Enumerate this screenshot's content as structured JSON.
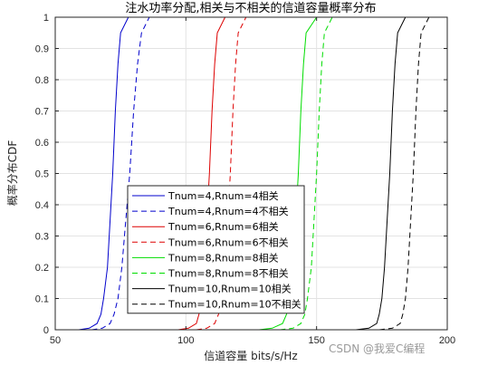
{
  "chart_data": {
    "type": "line",
    "title": "注水功率分配,相关与不相关的信道容量概率分布",
    "xlabel": "信道容量 bits/s/Hz",
    "ylabel": "概率分布CDF",
    "xlim": [
      50,
      200
    ],
    "ylim": [
      0,
      1
    ],
    "xticks": [
      "50",
      "100",
      "150",
      "200"
    ],
    "yticks": [
      "0",
      "0.1",
      "0.2",
      "0.3",
      "0.4",
      "0.5",
      "0.6",
      "0.7",
      "0.8",
      "0.9",
      "1"
    ],
    "grid": true,
    "legend_position": "center-left",
    "series": [
      {
        "name": "Tnum=4,Rnum=4相关",
        "color": "#0000cc",
        "dash": "solid",
        "x": [
          59,
          63,
          66,
          67.5,
          68.5,
          70,
          71,
          72,
          73,
          74,
          75,
          78
        ],
        "y": [
          0,
          0.005,
          0.02,
          0.05,
          0.1,
          0.2,
          0.35,
          0.5,
          0.7,
          0.85,
          0.95,
          1
        ]
      },
      {
        "name": "Tnum=4,Rnum=4不相关",
        "color": "#0000cc",
        "dash": "dashed",
        "x": [
          64,
          68,
          71,
          72.5,
          74,
          75.5,
          77,
          78.5,
          80,
          81.5,
          83,
          86
        ],
        "y": [
          0,
          0.005,
          0.02,
          0.05,
          0.1,
          0.2,
          0.35,
          0.5,
          0.7,
          0.85,
          0.95,
          1
        ]
      },
      {
        "name": "Tnum=6,Rnum=6相关",
        "color": "#dd0000",
        "dash": "solid",
        "x": [
          97,
          101,
          104,
          105,
          106,
          107,
          108,
          109,
          110,
          111,
          112,
          115
        ],
        "y": [
          0,
          0.005,
          0.02,
          0.05,
          0.1,
          0.2,
          0.35,
          0.5,
          0.7,
          0.85,
          0.95,
          1
        ]
      },
      {
        "name": "Tnum=6,Rnum=6不相关",
        "color": "#dd0000",
        "dash": "dashed",
        "x": [
          104,
          108,
          111,
          112.5,
          113.5,
          115,
          116,
          117,
          118,
          119,
          120,
          123
        ],
        "y": [
          0,
          0.005,
          0.02,
          0.05,
          0.1,
          0.2,
          0.35,
          0.5,
          0.7,
          0.85,
          0.95,
          1
        ]
      },
      {
        "name": "Tnum=8,Rnum=8相关",
        "color": "#00dd00",
        "dash": "solid",
        "x": [
          128,
          133,
          137,
          138.5,
          139.5,
          141,
          142,
          143,
          144,
          145,
          146,
          150
        ],
        "y": [
          0,
          0.005,
          0.02,
          0.05,
          0.1,
          0.2,
          0.35,
          0.5,
          0.7,
          0.85,
          0.95,
          1
        ]
      },
      {
        "name": "Tnum=8,Rnum=8不相关",
        "color": "#00dd00",
        "dash": "dashed",
        "x": [
          136,
          141,
          144,
          145.5,
          146.5,
          148,
          149,
          150,
          151,
          152,
          153,
          156
        ],
        "y": [
          0,
          0.005,
          0.02,
          0.05,
          0.1,
          0.2,
          0.35,
          0.5,
          0.7,
          0.85,
          0.95,
          1
        ]
      },
      {
        "name": "Tnum=10,Rnum=10相关",
        "color": "#000000",
        "dash": "solid",
        "x": [
          165,
          170,
          173,
          174,
          175,
          176,
          177,
          178,
          179,
          180,
          181,
          184
        ],
        "y": [
          0,
          0.005,
          0.02,
          0.05,
          0.1,
          0.2,
          0.35,
          0.5,
          0.7,
          0.85,
          0.95,
          1
        ]
      },
      {
        "name": "Tnum=10,Rnum=10不相关",
        "color": "#000000",
        "dash": "dashed",
        "x": [
          174,
          179,
          182,
          183,
          184,
          185,
          186,
          187,
          188,
          189,
          190,
          193
        ],
        "y": [
          0,
          0.005,
          0.02,
          0.05,
          0.1,
          0.2,
          0.35,
          0.5,
          0.7,
          0.85,
          0.95,
          1
        ]
      }
    ]
  },
  "watermark": "CSDN @我爱C编程"
}
